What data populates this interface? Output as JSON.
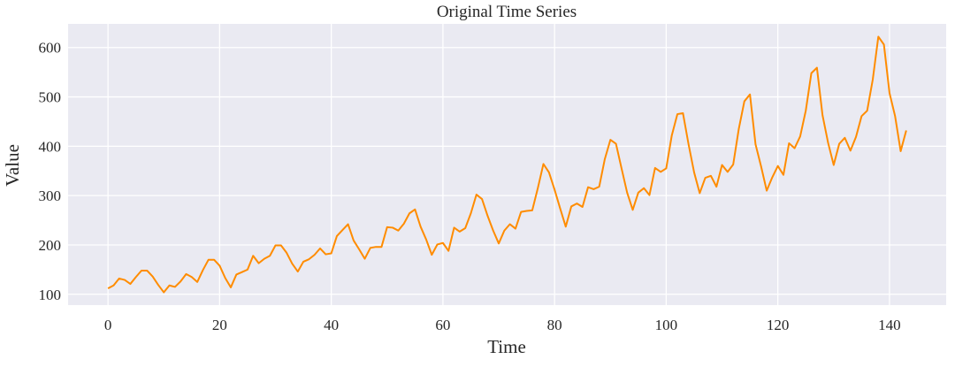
{
  "chart_data": {
    "type": "line",
    "title": "Original Time Series",
    "xlabel": "Time",
    "ylabel": "Value",
    "xlim": [
      -7.15,
      150.15
    ],
    "ylim": [
      78.1,
      647.9
    ],
    "xticks": [
      0,
      20,
      40,
      60,
      80,
      100,
      120,
      140
    ],
    "yticks": [
      100,
      200,
      300,
      400,
      500,
      600
    ],
    "grid": true,
    "background_color": "#EAEAF2",
    "grid_color": "#FFFFFF",
    "line_color": "#FF8C00",
    "series": [
      {
        "values": [
          112,
          118,
          132,
          129,
          121,
          135,
          148,
          148,
          136,
          119,
          104,
          118,
          115,
          126,
          141,
          135,
          125,
          149,
          170,
          170,
          158,
          133,
          114,
          140,
          145,
          150,
          178,
          163,
          172,
          178,
          199,
          199,
          184,
          162,
          146,
          166,
          171,
          180,
          193,
          181,
          183,
          218,
          230,
          242,
          209,
          191,
          172,
          194,
          196,
          196,
          236,
          235,
          229,
          243,
          264,
          272,
          237,
          211,
          180,
          201,
          204,
          188,
          235,
          227,
          234,
          264,
          302,
          293,
          259,
          229,
          203,
          229,
          242,
          233,
          267,
          269,
          270,
          315,
          364,
          347,
          312,
          274,
          237,
          278,
          284,
          277,
          317,
          313,
          318,
          374,
          413,
          405,
          355,
          306,
          271,
          306,
          315,
          301,
          356,
          348,
          355,
          422,
          465,
          467,
          404,
          347,
          305,
          336,
          340,
          318,
          362,
          348,
          363,
          435,
          491,
          505,
          404,
          359,
          310,
          337,
          360,
          342,
          406,
          396,
          420,
          472,
          548,
          559,
          463,
          407,
          362,
          405,
          417,
          391,
          419,
          461,
          472,
          535,
          622,
          606,
          508,
          461,
          390,
          432
        ]
      }
    ]
  }
}
